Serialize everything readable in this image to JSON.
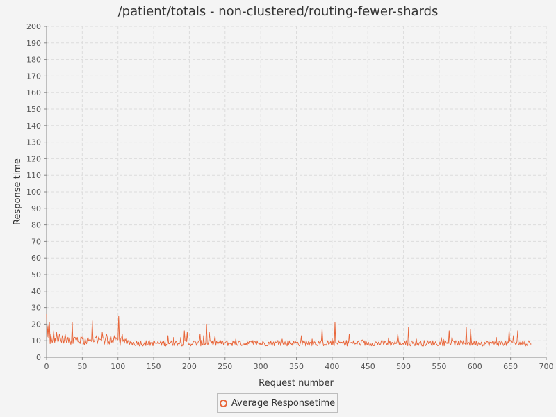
{
  "chart_data": {
    "type": "line",
    "title": "/patient/totals - non-clustered/routing-fewer-shards",
    "xlabel": "Request number",
    "ylabel": "Response time",
    "xlim": [
      0,
      700
    ],
    "ylim": [
      0,
      200
    ],
    "xticks": [
      0,
      50,
      100,
      150,
      200,
      250,
      300,
      350,
      400,
      450,
      500,
      550,
      600,
      650,
      700
    ],
    "yticks": [
      0,
      10,
      20,
      30,
      40,
      50,
      60,
      70,
      80,
      90,
      100,
      110,
      120,
      130,
      140,
      150,
      160,
      170,
      180,
      190,
      200
    ],
    "grid": true,
    "legend_position": "bottom-center",
    "series": [
      {
        "name": "Average Responsetime",
        "color": "#e8663a",
        "n_points": 680,
        "baseline": 8.5,
        "spikes": [
          [
            0,
            26
          ],
          [
            2,
            19
          ],
          [
            4,
            21
          ],
          [
            6,
            14
          ],
          [
            10,
            16
          ],
          [
            14,
            15
          ],
          [
            18,
            14
          ],
          [
            22,
            13
          ],
          [
            26,
            14
          ],
          [
            30,
            12
          ],
          [
            36,
            21
          ],
          [
            40,
            12
          ],
          [
            50,
            11
          ],
          [
            58,
            12
          ],
          [
            64,
            22
          ],
          [
            70,
            13
          ],
          [
            78,
            15
          ],
          [
            84,
            14
          ],
          [
            90,
            13
          ],
          [
            95,
            13
          ],
          [
            101,
            25
          ],
          [
            106,
            14
          ],
          [
            110,
            11
          ],
          [
            170,
            13
          ],
          [
            178,
            12
          ],
          [
            188,
            12
          ],
          [
            193,
            16
          ],
          [
            197,
            15
          ],
          [
            215,
            14
          ],
          [
            220,
            13
          ],
          [
            224,
            20
          ],
          [
            228,
            15
          ],
          [
            265,
            11
          ],
          [
            330,
            11
          ],
          [
            340,
            10
          ],
          [
            357,
            13
          ],
          [
            372,
            11
          ],
          [
            386,
            17
          ],
          [
            404,
            21
          ],
          [
            424,
            14
          ],
          [
            470,
            10
          ],
          [
            492,
            14
          ],
          [
            507,
            18
          ],
          [
            518,
            11
          ],
          [
            534,
            10
          ],
          [
            564,
            16
          ],
          [
            588,
            18
          ],
          [
            594,
            17
          ],
          [
            630,
            12
          ],
          [
            648,
            16
          ],
          [
            654,
            13
          ],
          [
            660,
            16
          ],
          [
            670,
            10
          ],
          [
            675,
            10
          ]
        ]
      }
    ]
  }
}
